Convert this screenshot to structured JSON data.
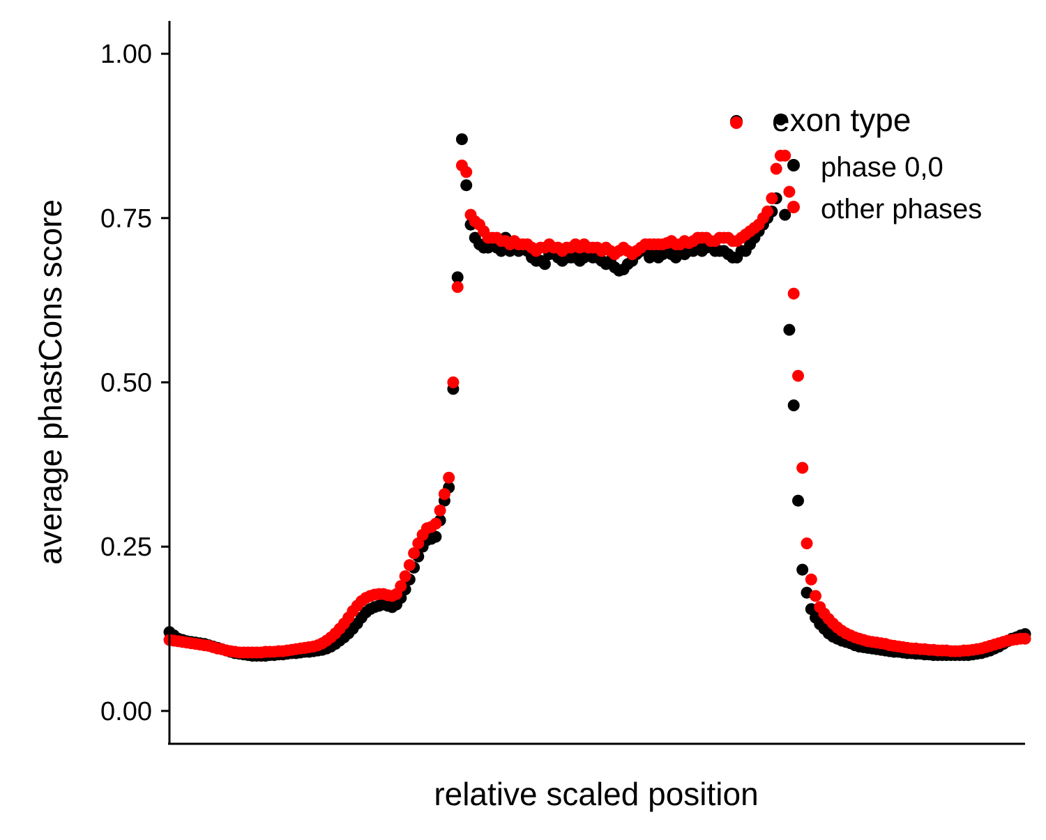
{
  "chart_data": {
    "type": "scatter",
    "title": "",
    "xlabel": "relative scaled position",
    "ylabel": "average phastCons score",
    "xlim": [
      0,
      300
    ],
    "ylim": [
      -0.05,
      1.05
    ],
    "x_ticks_shown": false,
    "y_ticks": [
      "0.00",
      "0.25",
      "0.50",
      "0.75",
      "1.00"
    ],
    "grid": false,
    "legend": {
      "title": "exon type",
      "placement": "top-right",
      "entries": [
        "phase 0,0",
        "other phases"
      ]
    },
    "series": [
      {
        "name": "phase 0,0",
        "color": "#000000",
        "values": [
          0.12,
          0.115,
          0.11,
          0.108,
          0.106,
          0.105,
          0.104,
          0.103,
          0.102,
          0.1,
          0.098,
          0.096,
          0.094,
          0.092,
          0.09,
          0.088,
          0.087,
          0.086,
          0.085,
          0.084,
          0.084,
          0.084,
          0.084,
          0.085,
          0.085,
          0.086,
          0.086,
          0.087,
          0.088,
          0.088,
          0.089,
          0.09,
          0.09,
          0.091,
          0.092,
          0.093,
          0.095,
          0.098,
          0.102,
          0.107,
          0.112,
          0.118,
          0.125,
          0.133,
          0.142,
          0.15,
          0.155,
          0.158,
          0.16,
          0.162,
          0.16,
          0.158,
          0.162,
          0.172,
          0.185,
          0.2,
          0.218,
          0.235,
          0.25,
          0.26,
          0.262,
          0.265,
          0.29,
          0.32,
          0.34,
          0.49,
          0.66,
          0.87,
          0.8,
          0.74,
          0.72,
          0.71,
          0.705,
          0.705,
          0.71,
          0.705,
          0.7,
          0.72,
          0.7,
          0.71,
          0.7,
          0.705,
          0.7,
          0.69,
          0.685,
          0.685,
          0.68,
          0.695,
          0.7,
          0.69,
          0.685,
          0.69,
          0.69,
          0.69,
          0.685,
          0.69,
          0.695,
          0.69,
          0.69,
          0.685,
          0.68,
          0.685,
          0.675,
          0.67,
          0.672,
          0.68,
          0.685,
          0.695,
          0.7,
          0.705,
          0.69,
          0.695,
          0.69,
          0.695,
          0.7,
          0.695,
          0.69,
          0.7,
          0.695,
          0.7,
          0.7,
          0.705,
          0.7,
          0.705,
          0.71,
          0.7,
          0.7,
          0.7,
          0.695,
          0.69,
          0.69,
          0.7,
          0.7,
          0.71,
          0.72,
          0.73,
          0.74,
          0.75,
          0.76,
          0.78,
          0.9,
          0.755,
          0.58,
          0.465,
          0.32,
          0.215,
          0.18,
          0.155,
          0.142,
          0.132,
          0.125,
          0.118,
          0.113,
          0.11,
          0.107,
          0.105,
          0.103,
          0.1,
          0.098,
          0.097,
          0.096,
          0.095,
          0.094,
          0.093,
          0.092,
          0.091,
          0.09,
          0.09,
          0.089,
          0.088,
          0.088,
          0.087,
          0.087,
          0.086,
          0.086,
          0.085,
          0.085,
          0.085,
          0.085,
          0.085,
          0.085,
          0.085,
          0.085,
          0.085,
          0.086,
          0.087,
          0.088,
          0.09,
          0.092,
          0.095,
          0.098,
          0.102,
          0.106,
          0.11,
          0.112,
          0.115,
          0.117
        ]
      },
      {
        "name": "other phases",
        "color": "#ff0000",
        "values": [
          0.108,
          0.107,
          0.106,
          0.105,
          0.104,
          0.103,
          0.102,
          0.101,
          0.1,
          0.099,
          0.097,
          0.095,
          0.094,
          0.092,
          0.091,
          0.09,
          0.089,
          0.089,
          0.089,
          0.089,
          0.089,
          0.089,
          0.09,
          0.09,
          0.09,
          0.091,
          0.091,
          0.092,
          0.093,
          0.094,
          0.095,
          0.096,
          0.097,
          0.098,
          0.1,
          0.103,
          0.107,
          0.112,
          0.118,
          0.125,
          0.133,
          0.142,
          0.152,
          0.16,
          0.167,
          0.172,
          0.175,
          0.177,
          0.178,
          0.178,
          0.176,
          0.175,
          0.178,
          0.19,
          0.205,
          0.222,
          0.24,
          0.255,
          0.268,
          0.278,
          0.28,
          0.285,
          0.305,
          0.33,
          0.355,
          0.5,
          0.645,
          0.83,
          0.82,
          0.755,
          0.745,
          0.74,
          0.73,
          0.72,
          0.72,
          0.72,
          0.715,
          0.715,
          0.71,
          0.715,
          0.71,
          0.71,
          0.71,
          0.705,
          0.7,
          0.705,
          0.705,
          0.71,
          0.705,
          0.705,
          0.7,
          0.705,
          0.705,
          0.71,
          0.705,
          0.71,
          0.705,
          0.705,
          0.705,
          0.7,
          0.705,
          0.7,
          0.695,
          0.7,
          0.705,
          0.7,
          0.695,
          0.7,
          0.705,
          0.71,
          0.71,
          0.71,
          0.71,
          0.71,
          0.712,
          0.715,
          0.71,
          0.71,
          0.715,
          0.712,
          0.715,
          0.72,
          0.72,
          0.72,
          0.715,
          0.715,
          0.72,
          0.72,
          0.72,
          0.715,
          0.715,
          0.72,
          0.725,
          0.73,
          0.735,
          0.74,
          0.75,
          0.76,
          0.78,
          0.825,
          0.845,
          0.845,
          0.79,
          0.635,
          0.51,
          0.37,
          0.255,
          0.2,
          0.175,
          0.158,
          0.148,
          0.14,
          0.133,
          0.127,
          0.122,
          0.118,
          0.115,
          0.112,
          0.11,
          0.108,
          0.106,
          0.105,
          0.104,
          0.103,
          0.102,
          0.1,
          0.099,
          0.098,
          0.097,
          0.096,
          0.095,
          0.095,
          0.094,
          0.094,
          0.093,
          0.093,
          0.092,
          0.092,
          0.092,
          0.091,
          0.091,
          0.091,
          0.092,
          0.092,
          0.093,
          0.094,
          0.095,
          0.097,
          0.099,
          0.101,
          0.103,
          0.105,
          0.107,
          0.108,
          0.109,
          0.11,
          0.11
        ]
      }
    ]
  }
}
